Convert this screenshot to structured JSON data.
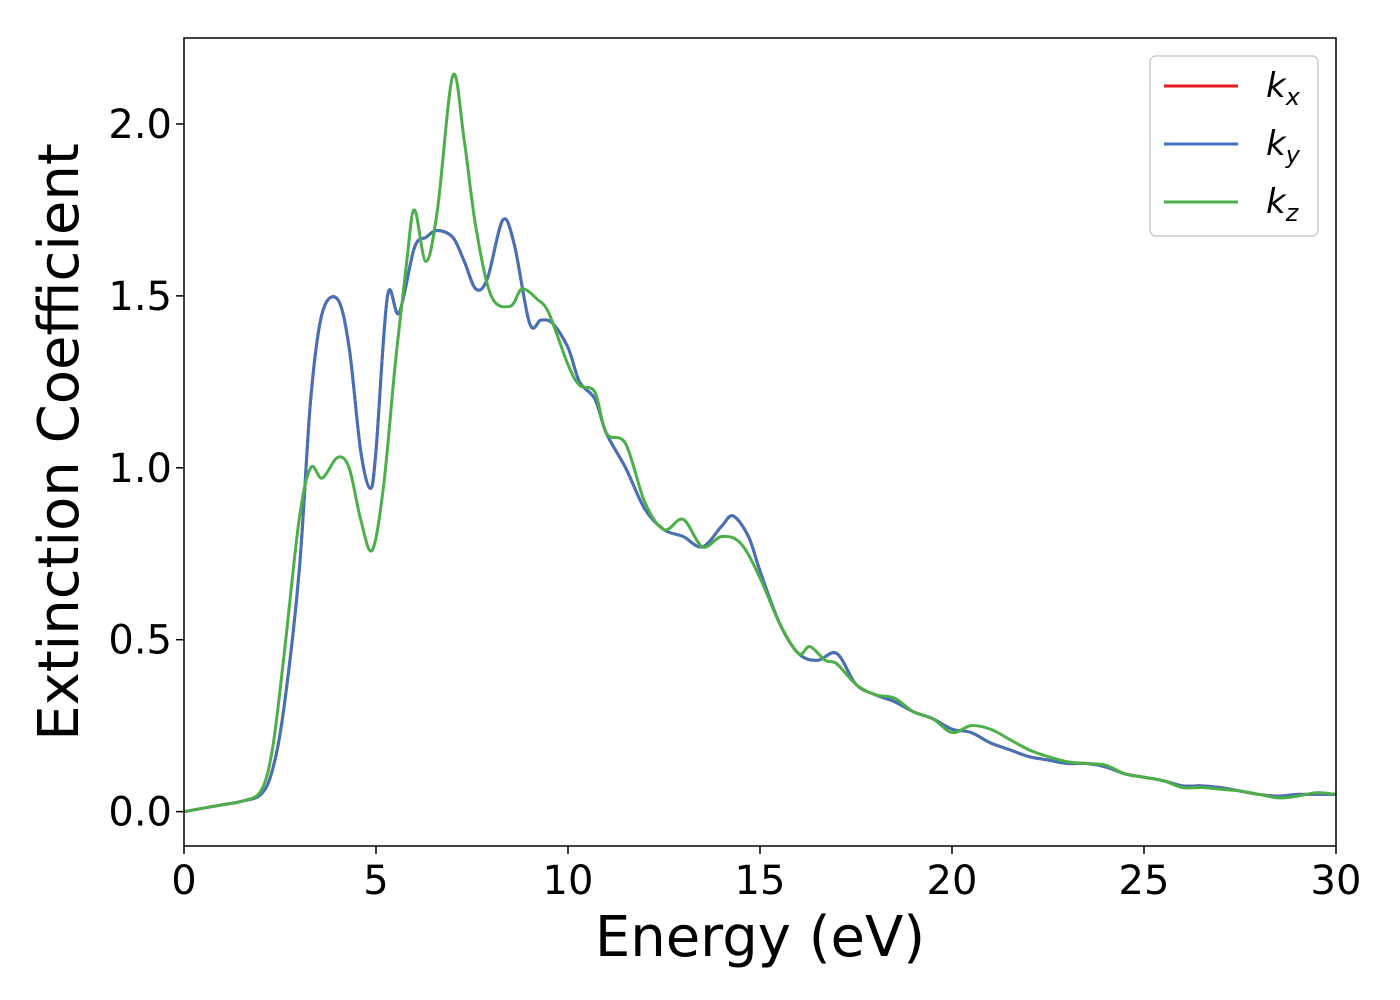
{
  "chart_data": {
    "type": "line",
    "xlabel": "Energy (eV)",
    "ylabel": "Extinction Coefficient",
    "xlim": [
      0,
      30
    ],
    "ylim": [
      -0.1,
      2.25
    ],
    "xticks": [
      0,
      5,
      10,
      15,
      20,
      25,
      30
    ],
    "yticks": [
      0.0,
      0.5,
      1.0,
      1.5,
      2.0
    ],
    "xtick_labels": [
      "0",
      "5",
      "10",
      "15",
      "20",
      "25",
      "30"
    ],
    "ytick_labels": [
      "0.0",
      "0.5",
      "1.0",
      "1.5",
      "2.0"
    ],
    "grid": false,
    "legend_position": "top-right",
    "series": [
      {
        "name": "kx",
        "label_base": "k",
        "label_sub": "x",
        "color": "#e41a1c",
        "x": [
          0,
          1,
          1.5,
          2,
          2.3,
          2.6,
          3,
          3.3,
          3.6,
          4,
          4.3,
          4.6,
          4.85,
          5,
          5.3,
          5.6,
          6,
          6.3,
          6.6,
          7,
          7.3,
          7.6,
          7.9,
          8.3,
          8.6,
          9,
          9.3,
          9.6,
          10,
          10.3,
          10.7,
          11,
          11.5,
          12,
          12.5,
          13,
          13.5,
          14,
          14.3,
          14.7,
          15,
          15.5,
          16,
          16.5,
          17,
          17.5,
          18,
          18.5,
          19,
          19.5,
          20,
          20.5,
          21,
          21.5,
          22,
          22.5,
          23,
          23.5,
          24,
          24.5,
          25,
          25.5,
          26,
          26.5,
          27,
          27.5,
          28,
          28.5,
          29,
          29.5,
          30
        ],
        "y": [
          0,
          0.02,
          0.03,
          0.05,
          0.12,
          0.3,
          0.7,
          1.2,
          1.45,
          1.49,
          1.35,
          1.05,
          0.94,
          1.05,
          1.5,
          1.45,
          1.64,
          1.67,
          1.69,
          1.67,
          1.6,
          1.52,
          1.55,
          1.72,
          1.65,
          1.42,
          1.43,
          1.42,
          1.35,
          1.25,
          1.2,
          1.1,
          1.0,
          0.88,
          0.82,
          0.8,
          0.77,
          0.83,
          0.86,
          0.8,
          0.7,
          0.55,
          0.46,
          0.44,
          0.46,
          0.37,
          0.34,
          0.32,
          0.29,
          0.27,
          0.24,
          0.23,
          0.2,
          0.18,
          0.16,
          0.15,
          0.14,
          0.14,
          0.13,
          0.11,
          0.1,
          0.09,
          0.075,
          0.075,
          0.07,
          0.06,
          0.05,
          0.045,
          0.05,
          0.05,
          0.05
        ]
      },
      {
        "name": "ky",
        "label_base": "k",
        "label_sub": "y",
        "color": "#4472b8",
        "x": [
          0,
          1,
          1.5,
          2,
          2.3,
          2.6,
          3,
          3.3,
          3.6,
          4,
          4.3,
          4.6,
          4.85,
          5,
          5.3,
          5.6,
          6,
          6.3,
          6.6,
          7,
          7.3,
          7.6,
          7.9,
          8.3,
          8.6,
          9,
          9.3,
          9.6,
          10,
          10.3,
          10.7,
          11,
          11.5,
          12,
          12.5,
          13,
          13.5,
          14,
          14.3,
          14.7,
          15,
          15.5,
          16,
          16.5,
          17,
          17.5,
          18,
          18.5,
          19,
          19.5,
          20,
          20.5,
          21,
          21.5,
          22,
          22.5,
          23,
          23.5,
          24,
          24.5,
          25,
          25.5,
          26,
          26.5,
          27,
          27.5,
          28,
          28.5,
          29,
          29.5,
          30
        ],
        "y": [
          0,
          0.02,
          0.03,
          0.05,
          0.12,
          0.3,
          0.7,
          1.2,
          1.45,
          1.49,
          1.35,
          1.05,
          0.94,
          1.05,
          1.5,
          1.45,
          1.64,
          1.67,
          1.69,
          1.67,
          1.6,
          1.52,
          1.55,
          1.72,
          1.65,
          1.42,
          1.43,
          1.42,
          1.35,
          1.25,
          1.2,
          1.1,
          1.0,
          0.88,
          0.82,
          0.8,
          0.77,
          0.83,
          0.86,
          0.8,
          0.7,
          0.55,
          0.46,
          0.44,
          0.46,
          0.37,
          0.34,
          0.32,
          0.29,
          0.27,
          0.24,
          0.23,
          0.2,
          0.18,
          0.16,
          0.15,
          0.14,
          0.14,
          0.13,
          0.11,
          0.1,
          0.09,
          0.075,
          0.075,
          0.07,
          0.06,
          0.05,
          0.045,
          0.05,
          0.05,
          0.05
        ]
      },
      {
        "name": "kz",
        "label_base": "k",
        "label_sub": "z",
        "color": "#4daf4a",
        "x": [
          0,
          1,
          1.5,
          2,
          2.3,
          2.6,
          3,
          3.3,
          3.6,
          4,
          4.3,
          4.6,
          4.9,
          5.2,
          5.5,
          5.8,
          6,
          6.3,
          6.6,
          7,
          7.3,
          7.6,
          8,
          8.5,
          8.8,
          9.2,
          9.5,
          10,
          10.3,
          10.7,
          11,
          11.5,
          12,
          12.5,
          13,
          13.5,
          14,
          14.5,
          15,
          15.5,
          16,
          16.3,
          16.7,
          17,
          17.5,
          18,
          18.5,
          19,
          19.5,
          20,
          20.5,
          21,
          21.5,
          22,
          22.5,
          23,
          23.5,
          24,
          24.5,
          25,
          25.5,
          26,
          26.5,
          27,
          27.5,
          28,
          28.5,
          29,
          29.5,
          30
        ],
        "y": [
          0,
          0.02,
          0.03,
          0.06,
          0.18,
          0.45,
          0.85,
          1.0,
          0.97,
          1.03,
          1.0,
          0.85,
          0.76,
          0.95,
          1.3,
          1.6,
          1.75,
          1.6,
          1.75,
          2.14,
          1.95,
          1.7,
          1.5,
          1.47,
          1.52,
          1.49,
          1.45,
          1.3,
          1.24,
          1.22,
          1.1,
          1.07,
          0.9,
          0.82,
          0.85,
          0.77,
          0.8,
          0.78,
          0.68,
          0.55,
          0.46,
          0.48,
          0.44,
          0.43,
          0.37,
          0.34,
          0.33,
          0.29,
          0.27,
          0.23,
          0.25,
          0.24,
          0.21,
          0.18,
          0.16,
          0.145,
          0.14,
          0.135,
          0.11,
          0.1,
          0.09,
          0.07,
          0.07,
          0.065,
          0.06,
          0.05,
          0.04,
          0.045,
          0.055,
          0.05
        ]
      }
    ]
  }
}
